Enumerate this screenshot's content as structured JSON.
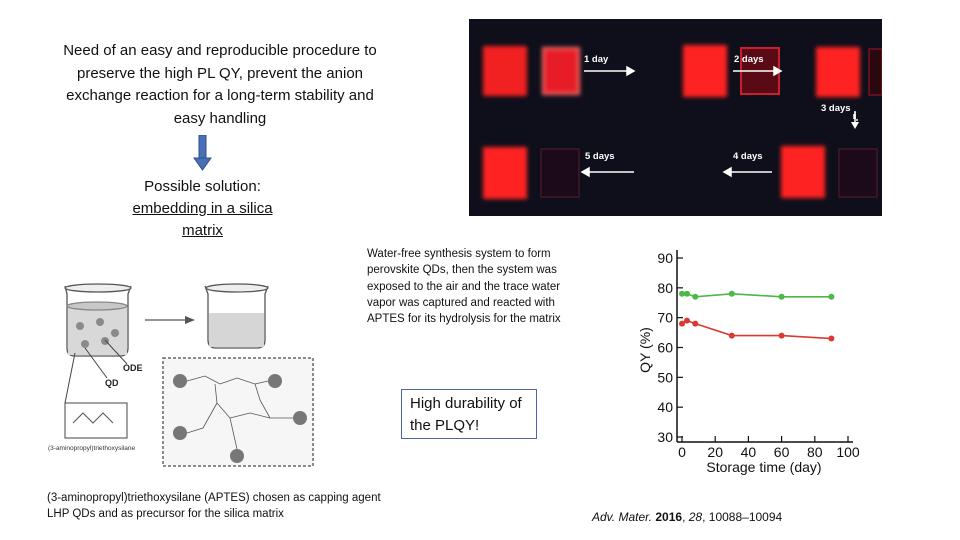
{
  "intro": {
    "lines": [
      "Need of an easy and reproducible procedure to",
      "preserve the high PL QY, prevent the anion",
      "exchange reaction for a long-term stability and",
      "easy handling"
    ]
  },
  "solution": {
    "line1": "Possible solution:",
    "line2": "embedding in a silica",
    "line3": "matrix"
  },
  "photo": {
    "labels": {
      "d1": "1 day",
      "d2": "2 days",
      "d3": "3 days",
      "d4": "4 days",
      "d5": "5 days"
    }
  },
  "water_text": "Water-free synthesis system to form perovskite QDs, then the system was exposed to the air and the trace water vapor was captured and reacted with APTES for its hydrolysis for the matrix",
  "durability": {
    "line1": "High durability of",
    "line2": "the PLQY!"
  },
  "capping": {
    "line1": "(3-aminopropyl)triethoxysilane (APTES) chosen as capping agent",
    "line2": "LHP QDs and as precursor for the silica matrix"
  },
  "reference": {
    "journal": "Adv. Mater.",
    "year": "2016",
    "vol": "28",
    "pages": "10088–10094"
  },
  "scheme": {
    "ode_label": "ODE",
    "qd_label": "QD",
    "aptes_label": "(3-aminopropyl)triethoxysilane"
  },
  "chart_data": {
    "type": "line",
    "xlabel": "Storage time (day)",
    "ylabel": "QY (%)",
    "xlim": [
      0,
      100
    ],
    "ylim": [
      30,
      90
    ],
    "xticks": [
      0,
      20,
      40,
      60,
      80,
      100
    ],
    "yticks": [
      30,
      40,
      50,
      60,
      70,
      80,
      90
    ],
    "series": [
      {
        "color": "#4cb848",
        "x": [
          0,
          3,
          8,
          30,
          60,
          90
        ],
        "y": [
          78,
          78,
          77,
          78,
          77,
          77
        ]
      },
      {
        "color": "#d93a32",
        "x": [
          0,
          3,
          8,
          30,
          60,
          90
        ],
        "y": [
          68,
          69,
          68,
          64,
          64,
          63
        ]
      }
    ]
  },
  "colors": {
    "arrow": "#4a6fb5",
    "box_border": "#4a66a8",
    "glow": "#ff2a2a"
  }
}
